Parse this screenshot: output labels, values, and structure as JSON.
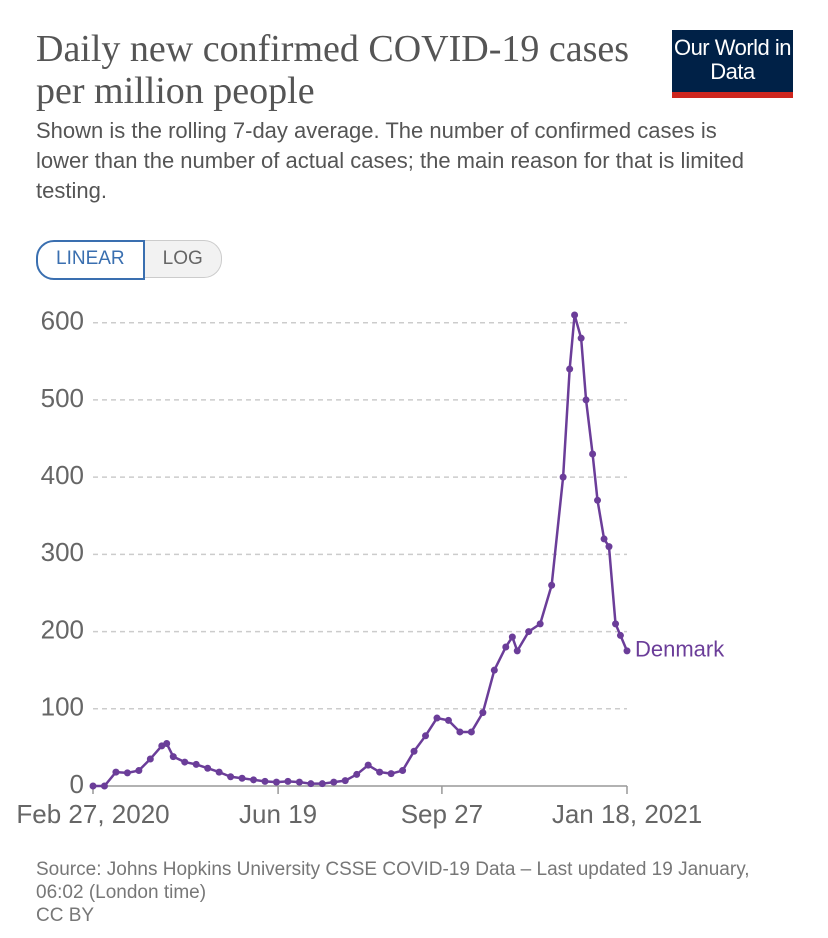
{
  "chart_data": {
    "type": "line",
    "title": "Daily new confirmed COVID-19 cases per million people",
    "subtitle": "Shown is the rolling 7-day average. The number of confirmed cases is lower than the number of actual cases; the main reason for that is limited testing.",
    "logo": "Our World in Data",
    "buttons": [
      "LINEAR",
      "LOG"
    ],
    "source": "Source: Johns Hopkins University CSSE COVID-19 Data – Last updated 19 January, 06:02 (London time)",
    "license": "CC BY",
    "x": [
      "2020-02-27",
      "2020-03-05",
      "2020-03-12",
      "2020-03-19",
      "2020-03-26",
      "2020-04-02",
      "2020-04-09",
      "2020-04-12",
      "2020-04-16",
      "2020-04-23",
      "2020-04-30",
      "2020-05-07",
      "2020-05-14",
      "2020-05-21",
      "2020-05-28",
      "2020-06-04",
      "2020-06-11",
      "2020-06-18",
      "2020-06-25",
      "2020-07-02",
      "2020-07-09",
      "2020-07-16",
      "2020-07-23",
      "2020-07-30",
      "2020-08-06",
      "2020-08-13",
      "2020-08-20",
      "2020-08-27",
      "2020-09-03",
      "2020-09-10",
      "2020-09-17",
      "2020-09-24",
      "2020-10-01",
      "2020-10-08",
      "2020-10-15",
      "2020-10-22",
      "2020-10-29",
      "2020-11-05",
      "2020-11-09",
      "2020-11-12",
      "2020-11-19",
      "2020-11-26",
      "2020-12-03",
      "2020-12-10",
      "2020-12-14",
      "2020-12-17",
      "2020-12-21",
      "2020-12-24",
      "2020-12-28",
      "2020-12-31",
      "2021-01-04",
      "2021-01-07",
      "2021-01-11",
      "2021-01-14",
      "2021-01-18"
    ],
    "series": [
      {
        "name": "Denmark",
        "color": "#6b3d99",
        "values": [
          0,
          0,
          18,
          17,
          20,
          35,
          52,
          55,
          38,
          31,
          28,
          23,
          18,
          12,
          10,
          8,
          6,
          5,
          6,
          5,
          3,
          3,
          5,
          7,
          15,
          27,
          18,
          16,
          20,
          45,
          65,
          88,
          85,
          70,
          70,
          95,
          150,
          180,
          193,
          175,
          200,
          210,
          260,
          400,
          540,
          610,
          580,
          500,
          430,
          370,
          320,
          310,
          210,
          195,
          175
        ]
      }
    ],
    "xlim": [
      "2020-02-27",
      "2021-01-18"
    ],
    "xticks": [
      {
        "value": "2020-02-27",
        "label": "Feb 27, 2020"
      },
      {
        "value": "2020-06-19",
        "label": "Jun 19"
      },
      {
        "value": "2020-09-27",
        "label": "Sep 27"
      },
      {
        "value": "2021-01-18",
        "label": "Jan 18, 2021"
      }
    ],
    "ylim": [
      0,
      610
    ],
    "yticks": [
      0,
      100,
      200,
      300,
      400,
      500,
      600
    ],
    "grid": true
  }
}
